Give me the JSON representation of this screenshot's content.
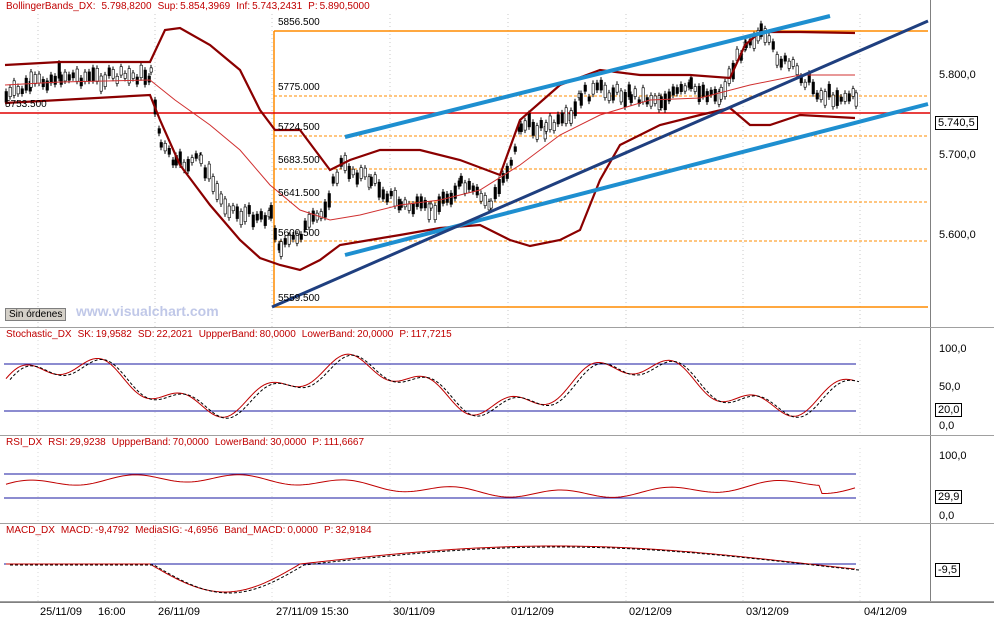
{
  "main": {
    "header": {
      "name": "BollingerBands_DX",
      "indicator": "BollingerBands_DX:",
      "value": "5.798,8200",
      "sup_label": "Sup:",
      "sup": "5.854,3969",
      "inf_label": "Inf:",
      "inf": "5.743,2431",
      "p_label": "P:",
      "p": "5.890,5000"
    },
    "price_axis": [
      "5.800,0",
      "5.700,0",
      "5.600,0"
    ],
    "last_price": "5.740,5",
    "fib_levels": [
      "5856.500",
      "5775.000",
      "5724.500",
      "5683.500",
      "5641.500",
      "5600.500",
      "5559.500"
    ],
    "left_level": "5753.500",
    "order_button": "Sin órdenes",
    "watermark": "www.visualchart.com"
  },
  "stochastic": {
    "name": "Stochastic_DX",
    "sk_label": "SK:",
    "sk": "19,9582",
    "sd_label": "SD:",
    "sd": "22,2021",
    "upper_label": "UppperBand:",
    "upper": "80,0000",
    "lower_label": "LowerBand:",
    "lower": "20,0000",
    "p_label": "P:",
    "p": "117,7215",
    "axis": [
      "100,0",
      "50,0",
      "0,0"
    ],
    "last": "20,0"
  },
  "rsi": {
    "name": "RSI_DX",
    "rsi_label": "RSI:",
    "rsi": "29,9238",
    "upper_label": "UppperBand:",
    "upper": "70,0000",
    "lower_label": "LowerBand:",
    "lower": "30,0000",
    "p_label": "P:",
    "p": "111,6667",
    "axis": [
      "100,0",
      "0,0"
    ],
    "last": "29,9"
  },
  "macd": {
    "name": "MACD_DX",
    "macd_label": "MACD:",
    "macd": "-9,4792",
    "signal_label": "MediaSIG:",
    "signal": "-4,6956",
    "band_label": "Band_MACD:",
    "band": "0,0000",
    "p_label": "P:",
    "p": "32,9184",
    "last": "-9,5"
  },
  "time_axis": [
    "25/11/09",
    "16:00",
    "26/11/09",
    "27/11/09 15:30",
    "30/11/09",
    "01/12/09",
    "02/12/09",
    "03/12/09",
    "04/12/09"
  ],
  "window_buttons": {
    "minimize": "_",
    "maximize": "□",
    "close": "×"
  },
  "colors": {
    "fib": "#ff8c00",
    "support": "#e00000",
    "trend_light": "#1e8fd0",
    "trend_dark": "#1f3f7f",
    "bands": "#8b0000",
    "bands_mid": "#d03030",
    "indicator_line": "#c00000",
    "band_lines": "#1a1aa0"
  }
}
